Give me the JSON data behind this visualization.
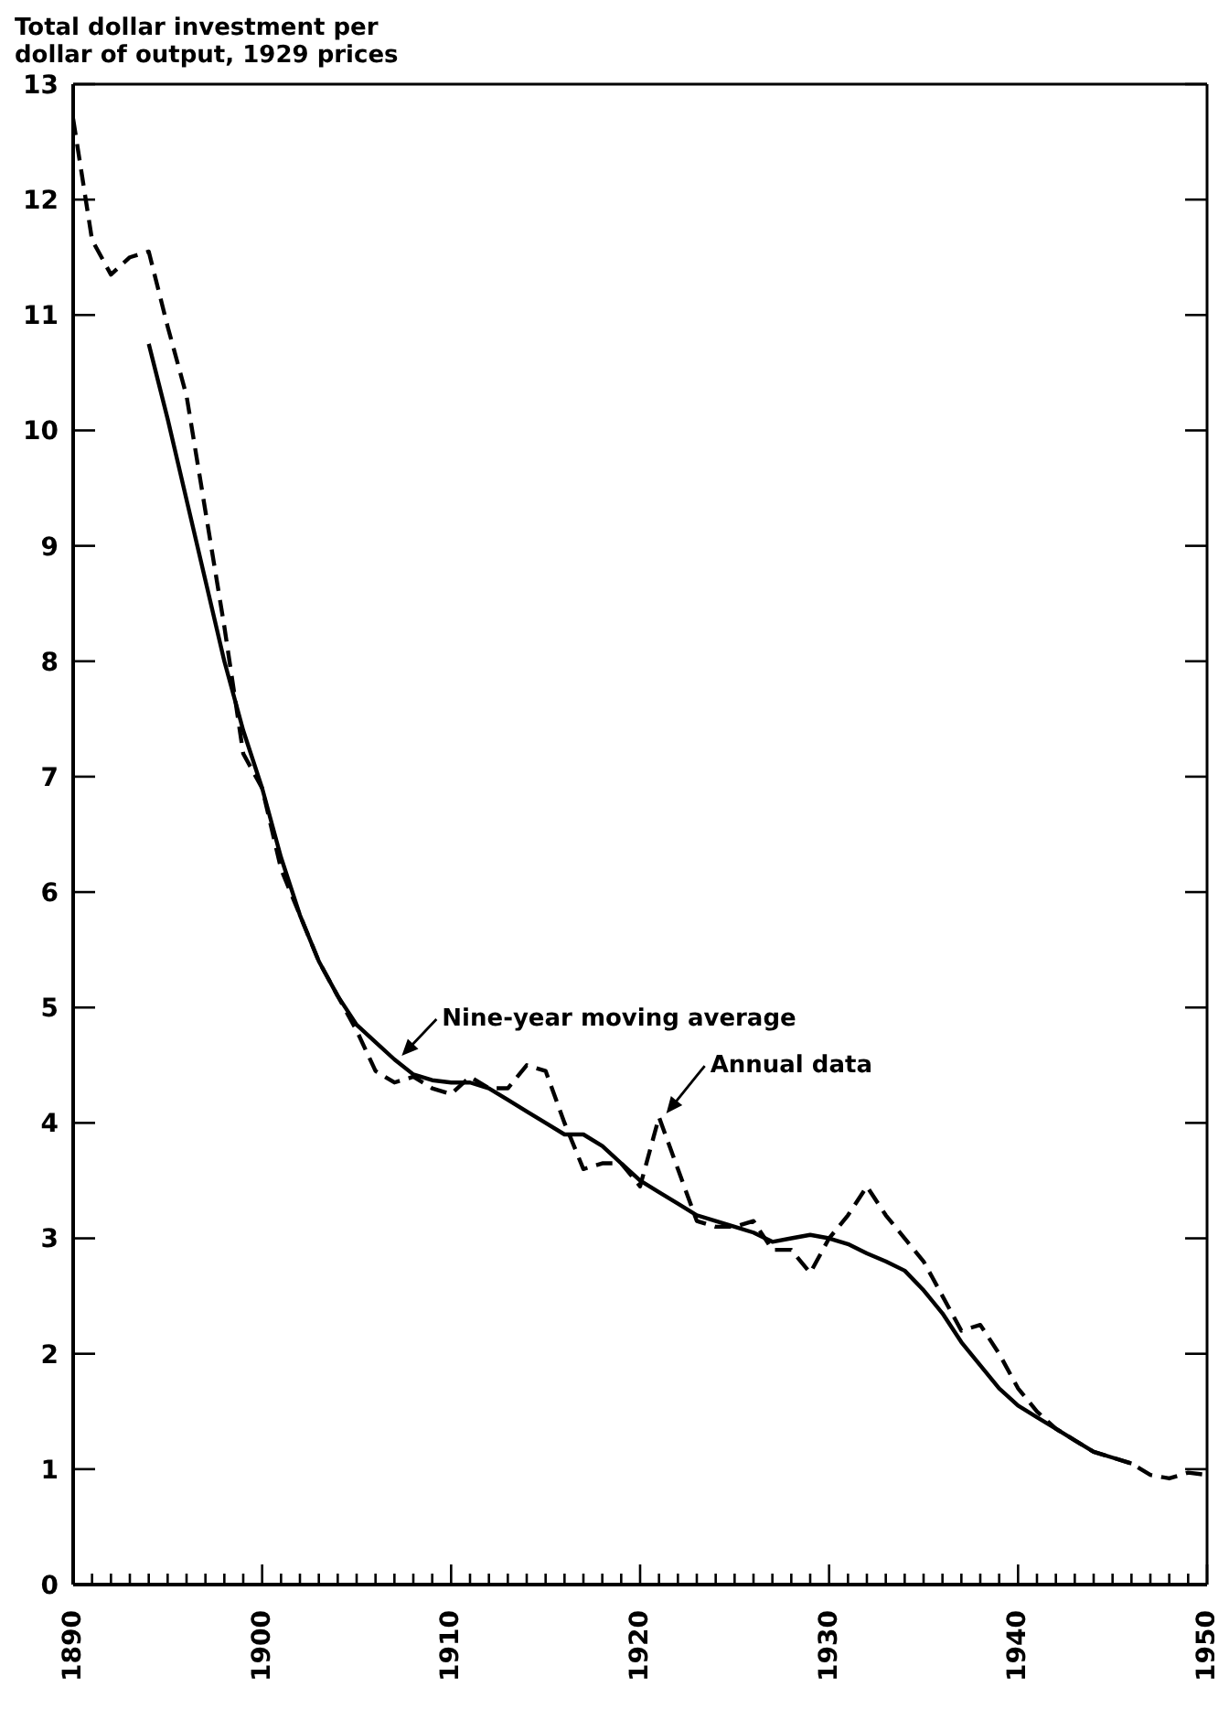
{
  "chart_data": {
    "type": "line",
    "ylabel": "Total dollar investment per dollar of output, 1929 prices",
    "x": [
      1890,
      1891,
      1892,
      1893,
      1894,
      1895,
      1896,
      1897,
      1898,
      1899,
      1900,
      1901,
      1902,
      1903,
      1904,
      1905,
      1906,
      1907,
      1908,
      1909,
      1910,
      1911,
      1912,
      1913,
      1914,
      1915,
      1916,
      1917,
      1918,
      1919,
      1920,
      1921,
      1922,
      1923,
      1924,
      1925,
      1926,
      1927,
      1928,
      1929,
      1930,
      1931,
      1932,
      1933,
      1934,
      1935,
      1936,
      1937,
      1938,
      1939,
      1940,
      1941,
      1942,
      1943,
      1944,
      1945,
      1946,
      1947,
      1948,
      1949,
      1950
    ],
    "series": [
      {
        "name": "Annual data",
        "color": "#000000",
        "line_style": "dashed",
        "values": [
          12.7,
          11.65,
          11.35,
          11.5,
          11.55,
          10.9,
          10.3,
          9.3,
          8.3,
          7.2,
          6.9,
          6.2,
          5.8,
          5.4,
          5.1,
          4.8,
          4.45,
          4.35,
          4.4,
          4.3,
          4.25,
          4.4,
          4.3,
          4.3,
          4.5,
          4.45,
          4.0,
          3.6,
          3.65,
          3.65,
          3.45,
          4.05,
          3.6,
          3.15,
          3.1,
          3.1,
          3.15,
          2.9,
          2.9,
          2.7,
          3.0,
          3.2,
          3.45,
          3.2,
          3.0,
          2.8,
          2.5,
          2.2,
          2.25,
          2.0,
          1.7,
          1.5,
          1.35,
          1.25,
          1.15,
          1.1,
          1.05,
          0.95,
          0.92,
          0.97,
          0.95
        ]
      },
      {
        "name": "Nine-year moving average",
        "color": "#000000",
        "line_style": "solid",
        "x": [
          1894,
          1895,
          1896,
          1897,
          1898,
          1899,
          1900,
          1901,
          1902,
          1903,
          1904,
          1905,
          1906,
          1907,
          1908,
          1909,
          1910,
          1911,
          1912,
          1913,
          1914,
          1915,
          1916,
          1917,
          1918,
          1919,
          1920,
          1921,
          1922,
          1923,
          1924,
          1925,
          1926,
          1927,
          1928,
          1929,
          1930,
          1931,
          1932,
          1933,
          1934,
          1935,
          1936,
          1937,
          1938,
          1939,
          1940,
          1941,
          1942,
          1943,
          1944,
          1945,
          1946
        ],
        "values": [
          10.75,
          10.1,
          9.4,
          8.7,
          8.0,
          7.4,
          6.9,
          6.3,
          5.8,
          5.4,
          5.1,
          4.85,
          4.7,
          4.55,
          4.42,
          4.37,
          4.35,
          4.35,
          4.3,
          4.2,
          4.1,
          4.0,
          3.9,
          3.9,
          3.8,
          3.65,
          3.5,
          3.4,
          3.3,
          3.2,
          3.15,
          3.1,
          3.05,
          2.97,
          3.0,
          3.03,
          3.0,
          2.95,
          2.87,
          2.8,
          2.72,
          2.55,
          2.35,
          2.1,
          1.9,
          1.7,
          1.55,
          1.45,
          1.35,
          1.25,
          1.15,
          1.1,
          1.05
        ]
      }
    ],
    "xlim": [
      1890,
      1950
    ],
    "xticks": [
      1890,
      {
        "value": 1891,
        "label": null
      },
      {
        "value": 1892,
        "label": null
      },
      {
        "value": 1893,
        "label": null
      },
      {
        "value": 1894,
        "label": null
      },
      {
        "value": 1895,
        "label": null
      },
      {
        "value": 1896,
        "label": null
      },
      {
        "value": 1897,
        "label": null
      },
      {
        "value": 1898,
        "label": null
      },
      {
        "value": 1899,
        "label": null
      },
      1900,
      {
        "value": 1901,
        "label": null
      },
      {
        "value": 1902,
        "label": null
      },
      {
        "value": 1903,
        "label": null
      },
      {
        "value": 1904,
        "label": null
      },
      {
        "value": 1905,
        "label": null
      },
      {
        "value": 1906,
        "label": null
      },
      {
        "value": 1907,
        "label": null
      },
      {
        "value": 1908,
        "label": null
      },
      {
        "value": 1909,
        "label": null
      },
      1910,
      {
        "value": 1911,
        "label": null
      },
      {
        "value": 1912,
        "label": null
      },
      {
        "value": 1913,
        "label": null
      },
      {
        "value": 1914,
        "label": null
      },
      {
        "value": 1915,
        "label": null
      },
      {
        "value": 1916,
        "label": null
      },
      {
        "value": 1917,
        "label": null
      },
      {
        "value": 1918,
        "label": null
      },
      {
        "value": 1919,
        "label": null
      },
      1920,
      {
        "value": 1921,
        "label": null
      },
      {
        "value": 1922,
        "label": null
      },
      {
        "value": 1923,
        "label": null
      },
      {
        "value": 1924,
        "label": null
      },
      {
        "value": 1925,
        "label": null
      },
      {
        "value": 1926,
        "label": null
      },
      {
        "value": 1927,
        "label": null
      },
      {
        "value": 1928,
        "label": null
      },
      {
        "value": 1929,
        "label": null
      },
      1930,
      {
        "value": 1931,
        "label": null
      },
      {
        "value": 1932,
        "label": null
      },
      {
        "value": 1933,
        "label": null
      },
      {
        "value": 1934,
        "label": null
      },
      {
        "value": 1935,
        "label": null
      },
      {
        "value": 1936,
        "label": null
      },
      {
        "value": 1937,
        "label": null
      },
      {
        "value": 1938,
        "label": null
      },
      {
        "value": 1939,
        "label": null
      },
      1940,
      {
        "value": 1941,
        "label": null
      },
      {
        "value": 1942,
        "label": null
      },
      {
        "value": 1943,
        "label": null
      },
      {
        "value": 1944,
        "label": null
      },
      {
        "value": 1945,
        "label": null
      },
      {
        "value": 1946,
        "label": null
      },
      {
        "value": 1947,
        "label": null
      },
      {
        "value": 1948,
        "label": null
      },
      {
        "value": 1949,
        "label": null
      },
      1950
    ],
    "ylim": [
      0,
      13
    ],
    "yticks": [
      0,
      1,
      2,
      3,
      4,
      5,
      6,
      7,
      8,
      9,
      10,
      11,
      12,
      13
    ],
    "grid": false,
    "marker": "none"
  }
}
